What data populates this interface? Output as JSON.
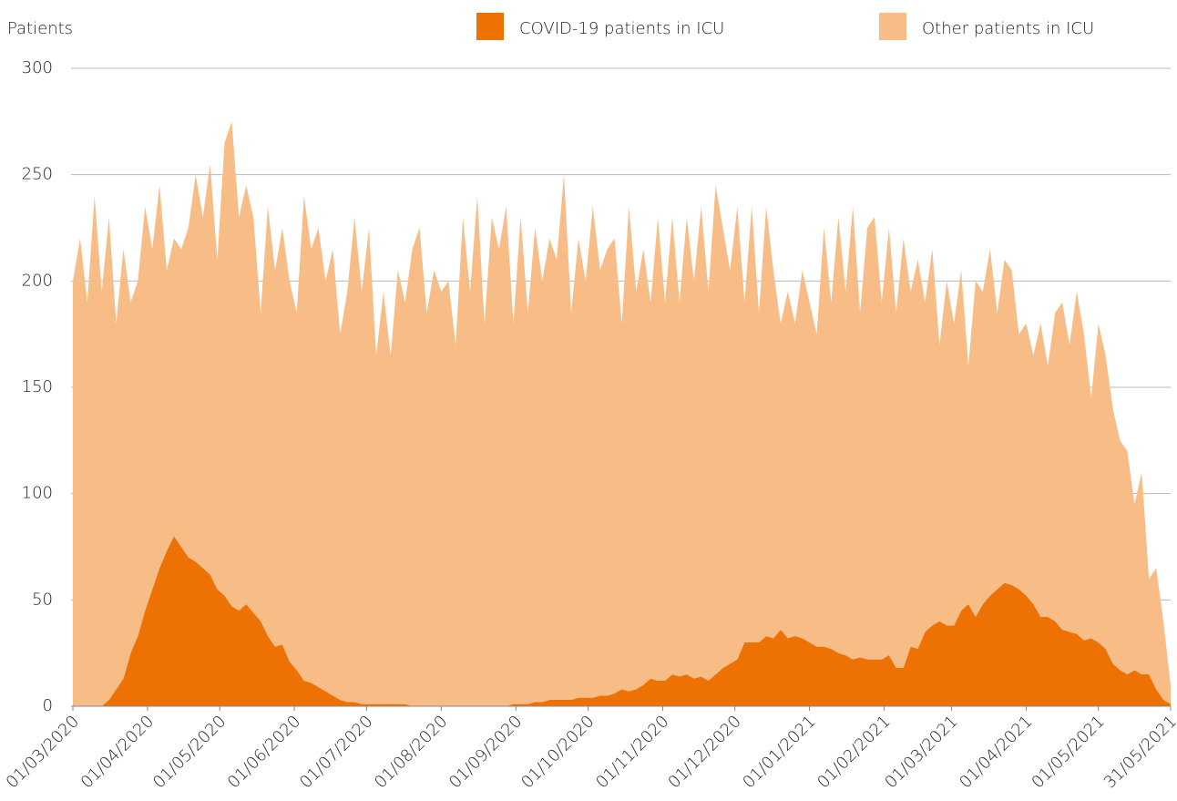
{
  "chart_data": {
    "type": "stacked_area",
    "y_label": "Patients",
    "x": [
      "01/03/2020",
      "04/03/2020",
      "07/03/2020",
      "10/03/2020",
      "13/03/2020",
      "16/03/2020",
      "19/03/2020",
      "22/03/2020",
      "25/03/2020",
      "28/03/2020",
      "31/03/2020",
      "03/04/2020",
      "06/04/2020",
      "09/04/2020",
      "12/04/2020",
      "15/04/2020",
      "18/04/2020",
      "21/04/2020",
      "24/04/2020",
      "27/04/2020",
      "30/04/2020",
      "03/05/2020",
      "06/05/2020",
      "09/05/2020",
      "12/05/2020",
      "15/05/2020",
      "18/05/2020",
      "21/05/2020",
      "24/05/2020",
      "27/05/2020",
      "30/05/2020",
      "02/06/2020",
      "05/06/2020",
      "08/06/2020",
      "11/06/2020",
      "14/06/2020",
      "17/06/2020",
      "20/06/2020",
      "23/06/2020",
      "26/06/2020",
      "29/06/2020",
      "02/07/2020",
      "05/07/2020",
      "08/07/2020",
      "11/07/2020",
      "14/07/2020",
      "17/07/2020",
      "20/07/2020",
      "23/07/2020",
      "26/07/2020",
      "29/07/2020",
      "01/08/2020",
      "04/08/2020",
      "07/08/2020",
      "10/08/2020",
      "13/08/2020",
      "16/08/2020",
      "19/08/2020",
      "22/08/2020",
      "25/08/2020",
      "28/08/2020",
      "31/08/2020",
      "03/09/2020",
      "06/09/2020",
      "09/09/2020",
      "12/09/2020",
      "15/09/2020",
      "18/09/2020",
      "21/09/2020",
      "24/09/2020",
      "27/09/2020",
      "30/09/2020",
      "03/10/2020",
      "06/10/2020",
      "09/10/2020",
      "12/10/2020",
      "15/10/2020",
      "18/10/2020",
      "21/10/2020",
      "24/10/2020",
      "27/10/2020",
      "30/10/2020",
      "02/11/2020",
      "05/11/2020",
      "08/11/2020",
      "11/11/2020",
      "14/11/2020",
      "17/11/2020",
      "20/11/2020",
      "23/11/2020",
      "26/11/2020",
      "29/11/2020",
      "02/12/2020",
      "05/12/2020",
      "08/12/2020",
      "11/12/2020",
      "14/12/2020",
      "17/12/2020",
      "20/12/2020",
      "23/12/2020",
      "26/12/2020",
      "29/12/2020",
      "01/01/2021",
      "04/01/2021",
      "07/01/2021",
      "10/01/2021",
      "13/01/2021",
      "16/01/2021",
      "19/01/2021",
      "22/01/2021",
      "25/01/2021",
      "28/01/2021",
      "31/01/2021",
      "03/02/2021",
      "06/02/2021",
      "09/02/2021",
      "12/02/2021",
      "15/02/2021",
      "18/02/2021",
      "21/02/2021",
      "24/02/2021",
      "27/02/2021",
      "02/03/2021",
      "05/03/2021",
      "08/03/2021",
      "11/03/2021",
      "14/03/2021",
      "17/03/2021",
      "20/03/2021",
      "23/03/2021",
      "26/03/2021",
      "29/03/2021",
      "01/04/2021",
      "04/04/2021",
      "07/04/2021",
      "10/04/2021",
      "13/04/2021",
      "16/04/2021",
      "19/04/2021",
      "22/04/2021",
      "25/04/2021",
      "28/04/2021",
      "01/05/2021",
      "04/05/2021",
      "07/05/2021",
      "10/05/2021",
      "13/05/2021",
      "16/05/2021",
      "19/05/2021",
      "22/05/2021",
      "25/05/2021",
      "28/05/2021",
      "31/05/2021"
    ],
    "series": [
      {
        "name": "COVID-19 patients in ICU",
        "color": "#ee7203",
        "values": [
          0,
          0,
          0,
          0,
          0,
          3,
          8,
          13,
          25,
          33,
          45,
          55,
          65,
          73,
          80,
          75,
          70,
          68,
          65,
          62,
          55,
          52,
          47,
          45,
          48,
          44,
          40,
          33,
          28,
          29,
          21,
          17,
          12,
          11,
          9,
          7,
          5,
          3,
          2,
          2,
          1,
          1,
          1,
          1,
          1,
          1,
          1,
          0,
          0,
          0,
          0,
          0,
          0,
          0,
          0,
          0,
          0,
          0,
          0,
          0,
          0,
          1,
          1,
          1,
          2,
          2,
          3,
          3,
          3,
          3,
          4,
          4,
          4,
          5,
          5,
          6,
          8,
          7,
          8,
          10,
          13,
          12,
          12,
          15,
          14,
          15,
          13,
          14,
          12,
          15,
          18,
          20,
          22,
          30,
          30,
          30,
          33,
          32,
          36,
          32,
          33,
          32,
          30,
          28,
          28,
          27,
          25,
          24,
          22,
          23,
          22,
          22,
          22,
          24,
          18,
          18,
          28,
          27,
          35,
          38,
          40,
          38,
          38,
          45,
          48,
          42,
          48,
          52,
          55,
          58,
          57,
          55,
          52,
          48,
          42,
          42,
          40,
          36,
          35,
          34,
          31,
          32,
          30,
          27,
          20,
          17,
          15,
          17,
          15,
          15,
          8,
          3,
          1
        ]
      },
      {
        "name": "Other patients in ICU",
        "color": "#f8bd87",
        "values": [
          200,
          220,
          190,
          240,
          195,
          227,
          172,
          202,
          165,
          167,
          190,
          160,
          180,
          132,
          140,
          140,
          155,
          182,
          165,
          193,
          155,
          213,
          228,
          185,
          197,
          186,
          145,
          202,
          177,
          196,
          179,
          168,
          228,
          204,
          216,
          193,
          210,
          172,
          193,
          228,
          194,
          224,
          164,
          194,
          164,
          204,
          189,
          215,
          225,
          185,
          205,
          195,
          200,
          170,
          230,
          195,
          240,
          180,
          230,
          215,
          235,
          179,
          229,
          184,
          223,
          198,
          217,
          207,
          247,
          182,
          216,
          196,
          231,
          200,
          210,
          214,
          172,
          228,
          187,
          205,
          177,
          218,
          178,
          215,
          176,
          215,
          187,
          221,
          183,
          230,
          207,
          185,
          213,
          160,
          205,
          155,
          202,
          173,
          144,
          163,
          147,
          173,
          160,
          147,
          197,
          163,
          205,
          171,
          213,
          162,
          203,
          208,
          168,
          201,
          167,
          202,
          167,
          183,
          155,
          177,
          130,
          162,
          142,
          160,
          112,
          158,
          147,
          163,
          130,
          152,
          148,
          120,
          128,
          117,
          138,
          118,
          145,
          154,
          135,
          161,
          144,
          113,
          150,
          138,
          120,
          108,
          105,
          78,
          95,
          45,
          57,
          37,
          9
        ]
      }
    ],
    "xticks": [
      "01/03/2020",
      "01/04/2020",
      "01/05/2020",
      "01/06/2020",
      "01/07/2020",
      "01/08/2020",
      "01/09/2020",
      "01/10/2020",
      "01/11/2020",
      "01/12/2020",
      "01/01/2021",
      "01/02/2021",
      "01/03/2021",
      "01/04/2021",
      "01/05/2021",
      "31/05/2021"
    ],
    "ylim": [
      0,
      300
    ],
    "yticks": [
      0,
      50,
      100,
      150,
      200,
      250,
      300
    ],
    "grid": true
  }
}
